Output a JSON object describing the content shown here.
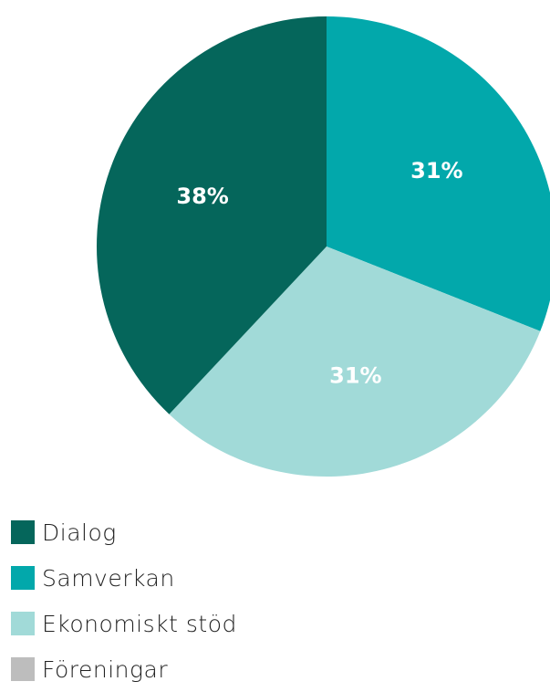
{
  "chart_data": {
    "type": "pie",
    "slices": [
      {
        "label": "Dialog",
        "value": 38,
        "display": "38%",
        "color": "#05665B"
      },
      {
        "label": "Samverkan",
        "value": 31,
        "display": "31%",
        "color": "#02A8AB"
      },
      {
        "label": "Ekonomiskt stöd",
        "value": 31,
        "display": "31%",
        "color": "#A1DAD8"
      },
      {
        "label": "Föreningar",
        "value": 0,
        "display": "",
        "color": "#BDBDBD"
      }
    ],
    "label_color": "#ffffff",
    "legend_position": "bottom-left"
  }
}
